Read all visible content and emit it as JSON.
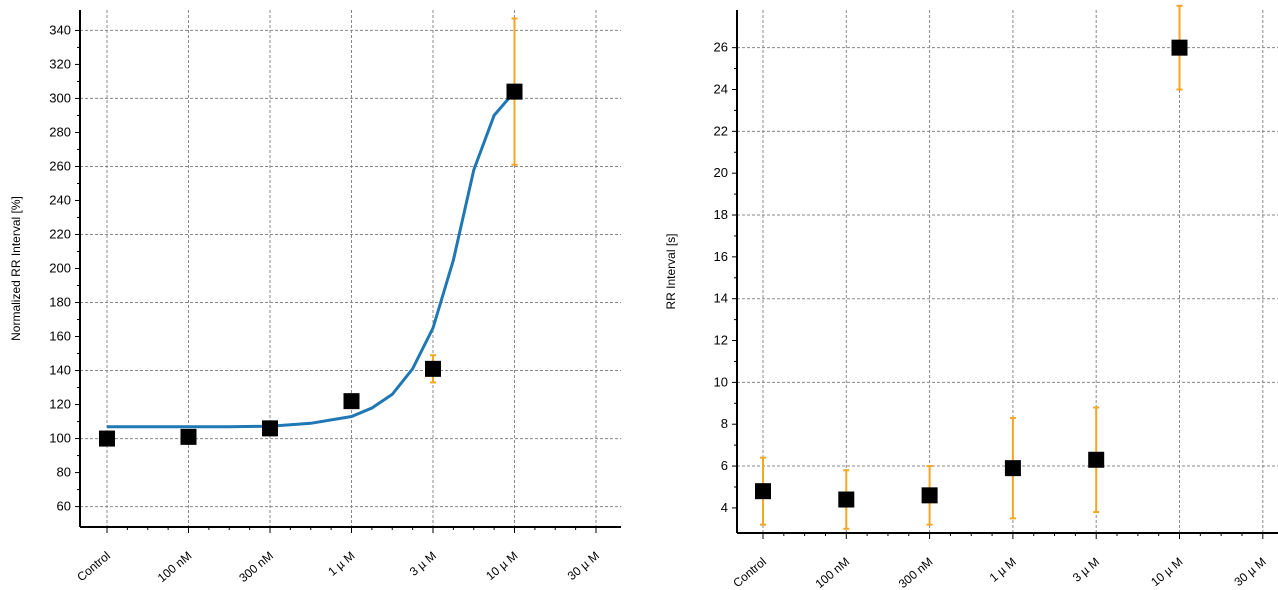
{
  "chart_data": [
    {
      "type": "scatter",
      "title": "",
      "xlabel": "",
      "ylabel": "Normalized RR Interval [%]",
      "categories": [
        "Control",
        "100 nM",
        "300 nM",
        "1 µ M",
        "3 µ M",
        "10 µ M",
        "30 µ M"
      ],
      "ylim": [
        48,
        352
      ],
      "yticks": [
        60,
        80,
        100,
        120,
        140,
        160,
        180,
        200,
        220,
        240,
        260,
        280,
        300,
        320,
        340
      ],
      "gridlines_y": [
        60,
        100,
        140,
        180,
        220,
        260,
        300,
        340
      ],
      "grid": true,
      "series": [
        {
          "values": [
            100,
            101,
            106,
            122,
            141,
            304
          ],
          "error": [
            null,
            null,
            null,
            null,
            8,
            43
          ],
          "marker": "square",
          "color": "#000000",
          "error_color": "#f5a623"
        }
      ],
      "fit_curve": {
        "color": "#1f77b4",
        "points": [
          [
            0,
            107
          ],
          [
            0.5,
            107
          ],
          [
            1,
            107
          ],
          [
            1.5,
            107
          ],
          [
            2,
            107.3
          ],
          [
            2.5,
            109
          ],
          [
            3,
            113
          ],
          [
            3.25,
            118
          ],
          [
            3.5,
            126
          ],
          [
            3.75,
            141
          ],
          [
            4,
            165
          ],
          [
            4.25,
            205
          ],
          [
            4.5,
            258
          ],
          [
            4.75,
            290
          ],
          [
            5,
            304
          ]
        ]
      }
    },
    {
      "type": "scatter",
      "title": "",
      "xlabel": "",
      "ylabel": "RR Interval [s]",
      "categories": [
        "Control",
        "100 nM",
        "300 nM",
        "1 µ M",
        "3 µ M",
        "10 µ M",
        "30 µ M"
      ],
      "ylim": [
        2.8,
        27.8
      ],
      "yticks": [
        4,
        6,
        8,
        10,
        12,
        14,
        16,
        18,
        20,
        22,
        24,
        26
      ],
      "gridlines_y": [
        6,
        10,
        14,
        18,
        22,
        26
      ],
      "grid": true,
      "series": [
        {
          "values": [
            4.8,
            4.4,
            4.6,
            5.9,
            6.3,
            26
          ],
          "error": [
            1.6,
            1.4,
            1.4,
            2.4,
            2.5,
            2
          ],
          "marker": "square",
          "color": "#000000",
          "error_color": "#f5a623"
        }
      ]
    }
  ]
}
